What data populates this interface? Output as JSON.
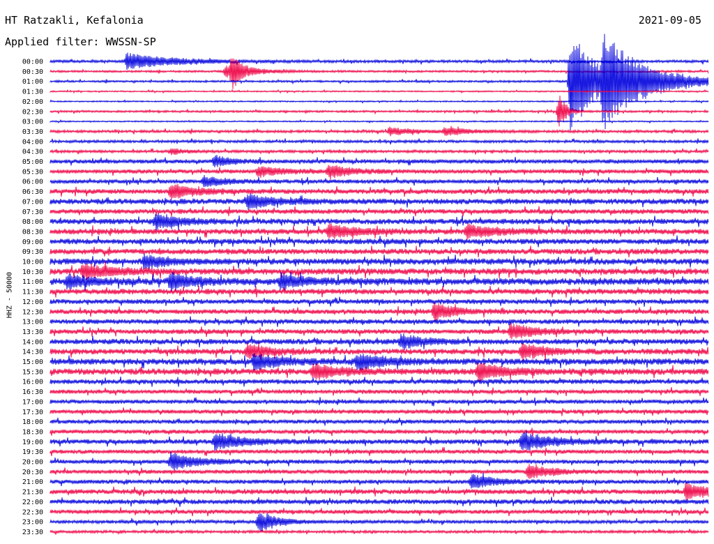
{
  "header": {
    "station": "HT Ratzakli, Kefalonia",
    "date": "2021-09-05",
    "filter": "Applied filter: WWSSN-SP"
  },
  "chart_data": {
    "type": "line",
    "ylabel": "HHZ - 50000",
    "row_labels": [
      "00:00",
      "00:30",
      "01:00",
      "01:30",
      "02:00",
      "02:30",
      "03:00",
      "03:30",
      "04:00",
      "04:30",
      "05:00",
      "05:30",
      "06:00",
      "06:30",
      "07:00",
      "07:30",
      "08:00",
      "08:30",
      "09:00",
      "09:30",
      "10:00",
      "10:30",
      "11:00",
      "11:30",
      "12:00",
      "12:30",
      "13:00",
      "13:30",
      "14:00",
      "14:30",
      "15:00",
      "15:30",
      "16:00",
      "16:30",
      "17:00",
      "17:30",
      "18:00",
      "18:30",
      "19:00",
      "19:30",
      "20:00",
      "20:30",
      "21:00",
      "21:30",
      "22:00",
      "22:30",
      "23:00",
      "23:30"
    ],
    "trace_colors": [
      "#0000dd",
      "#ee0044"
    ],
    "noise_level": [
      2,
      1.5,
      1.5,
      1,
      1,
      1.5,
      1,
      2,
      2,
      2,
      3,
      3,
      3,
      3.5,
      4,
      3.5,
      4,
      4,
      4,
      4,
      4.5,
      4.5,
      5,
      4,
      3.5,
      3.5,
      3.5,
      3.5,
      4,
      4,
      4.5,
      4.5,
      3.5,
      3,
      3,
      3,
      3,
      3,
      3.5,
      3,
      3,
      3,
      3,
      3.5,
      3.5,
      3,
      2.5,
      2
    ],
    "events": [
      {
        "row": 0,
        "minute": 3.5,
        "amplitude": 12,
        "duration": 2.0
      },
      {
        "row": 1,
        "minute": 8.0,
        "amplitude": 9,
        "duration": 1.2
      },
      {
        "row": 1,
        "minute": 8.3,
        "amplitude": 22,
        "duration": 0.4
      },
      {
        "row": 2,
        "minute": 24.0,
        "amplitude": 20,
        "duration": 0.3
      },
      {
        "row": 2,
        "minute": 25.2,
        "amplitude": 55,
        "duration": 2.0
      },
      {
        "row": 2,
        "minute": 23.7,
        "amplitude": 70,
        "duration": 1.2
      },
      {
        "row": 5,
        "minute": 23.2,
        "amplitude": 28,
        "duration": 0.3
      },
      {
        "row": 7,
        "minute": 15.5,
        "amplitude": 6,
        "duration": 1.0
      },
      {
        "row": 7,
        "minute": 18.0,
        "amplitude": 6,
        "duration": 1.0
      },
      {
        "row": 9,
        "minute": 5.5,
        "amplitude": 4,
        "duration": 0.6
      },
      {
        "row": 10,
        "minute": 7.5,
        "amplitude": 8,
        "duration": 0.8
      },
      {
        "row": 11,
        "minute": 9.5,
        "amplitude": 8,
        "duration": 1.0
      },
      {
        "row": 11,
        "minute": 12.7,
        "amplitude": 9,
        "duration": 1.0
      },
      {
        "row": 12,
        "minute": 7.0,
        "amplitude": 7,
        "duration": 1.0
      },
      {
        "row": 13,
        "minute": 5.5,
        "amplitude": 10,
        "duration": 1.2
      },
      {
        "row": 14,
        "minute": 9.0,
        "amplitude": 10,
        "duration": 1.2
      },
      {
        "row": 16,
        "minute": 4.8,
        "amplitude": 11,
        "duration": 1.0
      },
      {
        "row": 17,
        "minute": 12.7,
        "amplitude": 10,
        "duration": 1.2
      },
      {
        "row": 17,
        "minute": 19.0,
        "amplitude": 10,
        "duration": 1.2
      },
      {
        "row": 20,
        "minute": 4.3,
        "amplitude": 10,
        "duration": 1.0
      },
      {
        "row": 21,
        "minute": 1.5,
        "amplitude": 11,
        "duration": 1.2
      },
      {
        "row": 22,
        "minute": 0.8,
        "amplitude": 9,
        "duration": 1.0
      },
      {
        "row": 22,
        "minute": 5.5,
        "amplitude": 12,
        "duration": 1.0
      },
      {
        "row": 22,
        "minute": 10.5,
        "amplitude": 10,
        "duration": 1.0
      },
      {
        "row": 25,
        "minute": 17.5,
        "amplitude": 12,
        "duration": 1.0
      },
      {
        "row": 27,
        "minute": 21.0,
        "amplitude": 12,
        "duration": 1.0
      },
      {
        "row": 28,
        "minute": 16.0,
        "amplitude": 10,
        "duration": 1.0
      },
      {
        "row": 29,
        "minute": 9.0,
        "amplitude": 10,
        "duration": 1.0
      },
      {
        "row": 29,
        "minute": 21.5,
        "amplitude": 11,
        "duration": 1.0
      },
      {
        "row": 30,
        "minute": 9.3,
        "amplitude": 11,
        "duration": 1.2
      },
      {
        "row": 30,
        "minute": 14.0,
        "amplitude": 11,
        "duration": 1.2
      },
      {
        "row": 31,
        "minute": 12.0,
        "amplitude": 11,
        "duration": 1.2
      },
      {
        "row": 31,
        "minute": 19.5,
        "amplitude": 12,
        "duration": 1.2
      },
      {
        "row": 38,
        "minute": 7.5,
        "amplitude": 12,
        "duration": 1.2
      },
      {
        "row": 38,
        "minute": 21.5,
        "amplitude": 14,
        "duration": 1.2
      },
      {
        "row": 40,
        "minute": 5.5,
        "amplitude": 12,
        "duration": 1.2
      },
      {
        "row": 41,
        "minute": 21.8,
        "amplitude": 10,
        "duration": 1.0
      },
      {
        "row": 42,
        "minute": 19.2,
        "amplitude": 11,
        "duration": 1.0
      },
      {
        "row": 43,
        "minute": 29.0,
        "amplitude": 12,
        "duration": 1.0
      },
      {
        "row": 46,
        "minute": 9.5,
        "amplitude": 16,
        "duration": 0.8
      }
    ]
  }
}
